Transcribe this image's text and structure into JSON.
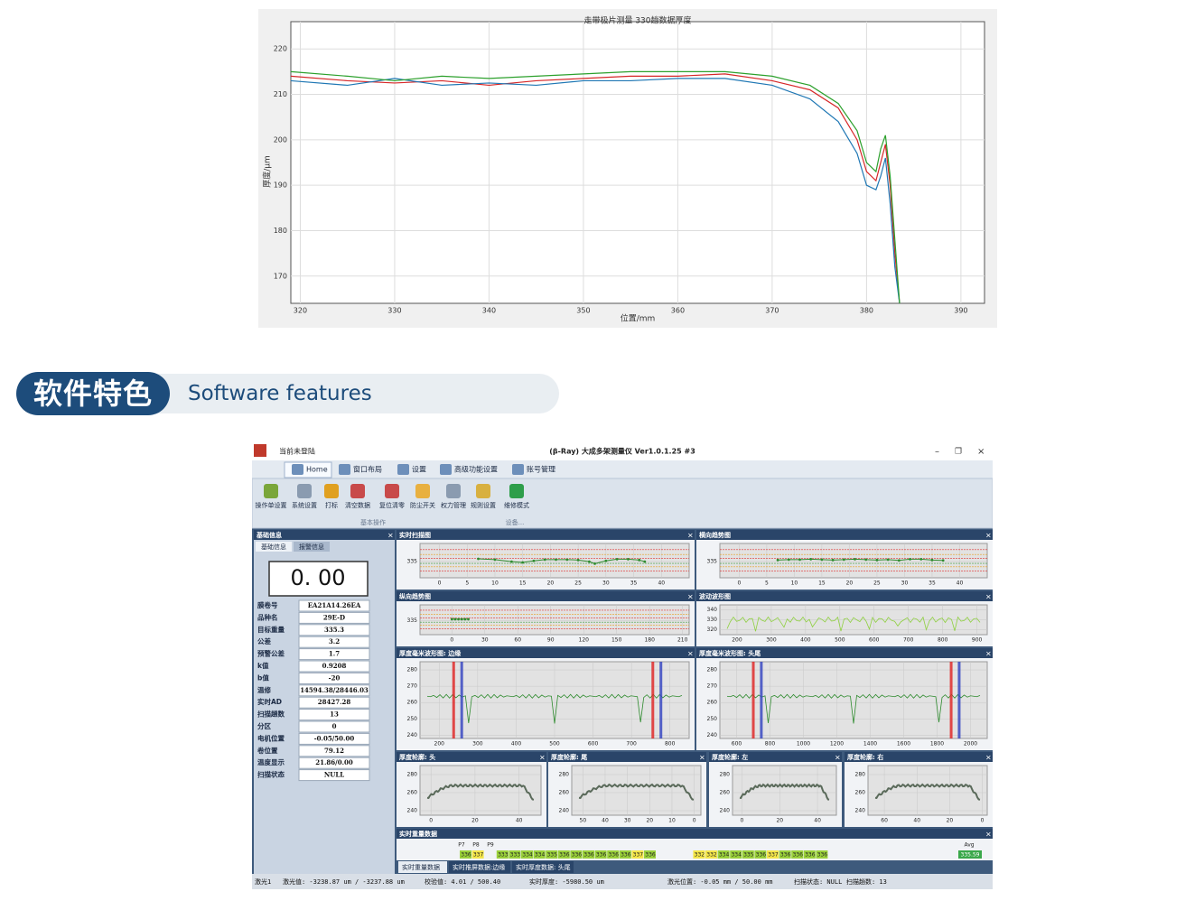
{
  "chart_data": {
    "type": "line",
    "title": "走带极片测量 330趟数据厚度",
    "x_label": "位置/mm",
    "y_label": "厚度/μm",
    "x": [
      319,
      325,
      330,
      335,
      340,
      345,
      350,
      355,
      360,
      365,
      370,
      374,
      377,
      379,
      380,
      381,
      381.5,
      382,
      382.5,
      383,
      383.5
    ],
    "series": [
      {
        "color": "#d62728",
        "values": [
          214,
          213,
          212.5,
          213,
          212,
          213,
          213.5,
          214,
          214,
          214.5,
          213,
          211,
          207,
          200,
          193,
          191,
          195,
          199,
          190,
          175,
          164
        ]
      },
      {
        "color": "#1f77b4",
        "values": [
          213,
          212,
          213.5,
          212,
          212.5,
          212,
          213,
          213,
          213.5,
          213.5,
          212,
          209,
          204,
          197,
          190,
          189,
          192,
          196,
          186,
          172,
          164
        ]
      },
      {
        "color": "#2ca02c",
        "values": [
          215,
          214,
          213,
          214,
          213.5,
          214,
          214.5,
          215,
          215,
          215,
          214,
          212,
          208,
          202,
          195,
          193,
          198,
          201,
          192,
          178,
          164
        ]
      }
    ],
    "xlim": [
      319,
      392.5
    ],
    "ylim": [
      164,
      226
    ],
    "xticks": [
      320,
      330,
      340,
      350,
      360,
      370,
      380,
      390
    ],
    "yticks": [
      170,
      180,
      190,
      200,
      210,
      220
    ],
    "grid": true
  },
  "banner": {
    "title": "软件特色",
    "subtitle": "Software features"
  },
  "app": {
    "title": "(β-Ray) 大成多架测量仪 Ver1.0.1.25 #3",
    "login": "当前未登陆",
    "tabs": [
      "Home",
      "窗口布局",
      "设置",
      "高级功能设置",
      "账号管理"
    ],
    "tools": [
      "操作单设置",
      "系统设置",
      "打标",
      "清空数据",
      "复位清零",
      "防尘开关",
      "权力管理",
      "规则设置",
      "维修模式"
    ],
    "groups": [
      "基本操作",
      "设备..."
    ],
    "info": {
      "title": "基础信息",
      "tabs": [
        "基础信息",
        "报警信息"
      ],
      "display": "0. 00",
      "rows": [
        [
          "膜卷号",
          "EA21A14.26EA"
        ],
        [
          "品种名",
          "29E-D"
        ],
        [
          "目标重量",
          "335.3"
        ],
        [
          "公差",
          "3.2"
        ],
        [
          "预警公差",
          "1.7"
        ],
        [
          "k值",
          "0.9208"
        ],
        [
          "b值",
          "-20"
        ],
        [
          "温修",
          "14594.38/28446.03"
        ],
        [
          "实时AD",
          "28427.28"
        ],
        [
          "扫描趟数",
          "13"
        ],
        [
          "分区",
          "0"
        ],
        [
          "电机位置",
          "-0.05/50.00"
        ],
        [
          "卷位置",
          "79.12"
        ],
        [
          "温度显示",
          "21.86/0.00"
        ],
        [
          "扫描状态",
          "NULL"
        ]
      ]
    },
    "panels": [
      {
        "title": "实时扫描图",
        "kind": "scan",
        "xlim": [
          -3.5,
          45
        ],
        "ylim": [
          331,
          339.5
        ],
        "xticks": [
          0,
          5,
          10,
          15,
          20,
          25,
          30,
          35,
          40
        ],
        "yticks": [
          335
        ],
        "x": [
          7,
          10,
          13,
          15,
          17,
          19,
          21,
          23,
          25,
          27,
          28,
          30,
          32,
          34,
          36,
          37
        ],
        "values": [
          335.7,
          335.5,
          335.0,
          334.8,
          335.2,
          335.5,
          335.5,
          335.5,
          335.4,
          335.0,
          334.5,
          335.2,
          335.6,
          335.6,
          335.4,
          335.0
        ]
      },
      {
        "title": "横向趋势图",
        "kind": "scan",
        "xlim": [
          -3.5,
          45
        ],
        "ylim": [
          331,
          339.5
        ],
        "xticks": [
          0,
          5,
          10,
          15,
          20,
          25,
          30,
          35,
          40
        ],
        "yticks": [
          335
        ],
        "x": [
          7,
          9,
          11,
          13,
          15,
          17,
          19,
          21,
          23,
          25,
          27,
          29,
          31,
          33,
          35,
          37
        ],
        "values": [
          335.4,
          335.5,
          335.5,
          335.6,
          335.5,
          335.4,
          335.5,
          335.6,
          335.5,
          335.4,
          335.5,
          335.3,
          335.6,
          335.6,
          335.4,
          335.3
        ]
      },
      {
        "title": "纵向趋势图",
        "kind": "scan",
        "xlim": [
          -29,
          216
        ],
        "ylim": [
          331,
          339.5
        ],
        "xticks": [
          0,
          30,
          60,
          90,
          120,
          150,
          180,
          210
        ],
        "yticks": [
          335
        ],
        "x": [
          0,
          3,
          6,
          9,
          12,
          15
        ],
        "values": [
          335.4,
          335.4,
          335.4,
          335.4,
          335.4,
          335.4
        ]
      },
      {
        "title": "波动波形图",
        "kind": "wave",
        "xlim": [
          150,
          930
        ],
        "ylim": [
          315,
          345
        ],
        "xticks": [
          200,
          300,
          400,
          500,
          600,
          700,
          800,
          900
        ],
        "yticks": [
          320,
          330,
          340
        ]
      },
      {
        "title": "厚度毫米波形图: 边缘",
        "kind": "edge",
        "xlim": [
          150,
          850
        ],
        "ylim": [
          238,
          285
        ],
        "xticks": [
          200,
          300,
          400,
          500,
          600,
          700,
          800
        ],
        "yticks": [
          240,
          250,
          260,
          270,
          280
        ]
      },
      {
        "title": "厚度毫米波形图: 头尾",
        "kind": "edge",
        "xlim": [
          500,
          2100
        ],
        "ylim": [
          238,
          285
        ],
        "xticks": [
          600,
          800,
          1000,
          1200,
          1400,
          1600,
          1800,
          2000
        ],
        "yticks": [
          240,
          250,
          260,
          270,
          280
        ]
      },
      {
        "title": "厚度轮廓: 头",
        "kind": "profile",
        "xlim": [
          -5,
          50
        ],
        "ylim": [
          235,
          290
        ],
        "xticks": [
          0,
          20,
          40
        ],
        "yticks": [
          240,
          260,
          280
        ]
      },
      {
        "title": "厚度轮廓: 尾",
        "kind": "profile",
        "xlim": [
          55,
          -3
        ],
        "ylim": [
          235,
          290
        ],
        "xticks": [
          50,
          40,
          30,
          20,
          10,
          0
        ],
        "yticks": [
          240,
          260,
          280
        ]
      },
      {
        "title": "厚度轮廓: 左",
        "kind": "profile",
        "xlim": [
          -5,
          50
        ],
        "ylim": [
          235,
          290
        ],
        "xticks": [
          0,
          20,
          40
        ],
        "yticks": [
          240,
          260,
          280
        ]
      },
      {
        "title": "厚度轮廓: 右",
        "kind": "profile",
        "xlim": [
          70,
          -3
        ],
        "ylim": [
          235,
          290
        ],
        "xticks": [
          60,
          40,
          20,
          0
        ],
        "yticks": [
          240,
          260,
          280
        ]
      }
    ],
    "weights": {
      "title": "实时重量数据",
      "headers": [
        "P7",
        "P8",
        "P9"
      ],
      "avg_label": "Avg",
      "avg": 335.59,
      "values": [
        336,
        337,
        null,
        333,
        333,
        334,
        334,
        335,
        336,
        336,
        336,
        336,
        336,
        336,
        337,
        336,
        null,
        null,
        null,
        332,
        332,
        334,
        334,
        335,
        336,
        337,
        336,
        336,
        336,
        336
      ],
      "colors": [
        "#9bd13b",
        "#f4e64a",
        null,
        "#9bd13b",
        "#9bd13b",
        "#9bd13b",
        "#9bd13b",
        "#9bd13b",
        "#9bd13b",
        "#9bd13b",
        "#9bd13b",
        "#9bd13b",
        "#9bd13b",
        "#9bd13b",
        "#f4e64a",
        "#9bd13b",
        null,
        null,
        null,
        "#f4e64a",
        "#f4e64a",
        "#9bd13b",
        "#9bd13b",
        "#9bd13b",
        "#9bd13b",
        "#f4e64a",
        "#9bd13b",
        "#9bd13b",
        "#9bd13b",
        "#9bd13b"
      ]
    },
    "bottom_tabs": [
      "实时重量数据",
      "实时推屏数据:边缘",
      "实时厚度数据: 头尾"
    ],
    "status": [
      "激光1",
      "激光值: -3238.87 um / -3237.88 um",
      "校验值: 4.01 / 500.40",
      "实时厚度: -5980.50 um",
      "激光位置: -0.05 mm / 50.00 mm",
      "扫描状态: NULL",
      "扫描趟数: 13"
    ]
  }
}
